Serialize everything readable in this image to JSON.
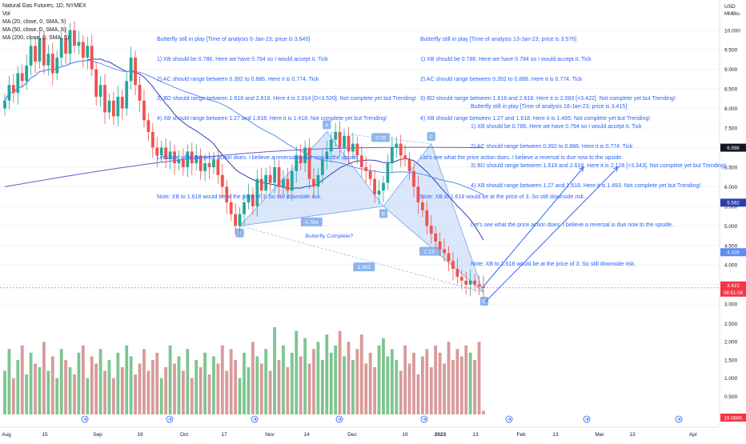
{
  "legend": {
    "title": "Natural Gas Futures, 1D, NYMEX",
    "vol": "Vol",
    "ma20": "MA (20, close, 0, SMA, 5)",
    "ma50": "MA (50, close, 0, SMA, 5)",
    "ma200": "MA (200, close, 0, SMA, 5)"
  },
  "axis": {
    "currency": "USD",
    "unit": "MMBtu",
    "price_ticks": [
      "10.000",
      "9.500",
      "9.000",
      "8.500",
      "8.000",
      "7.500",
      "7.000",
      "6.500",
      "6.000",
      "5.500",
      "5.000",
      "4.500",
      "4.000",
      "3.500",
      "3.000"
    ],
    "volume_ticks": [
      "2.500",
      "2.000",
      "1.500",
      "1.000",
      "0.500"
    ],
    "time_ticks": [
      "Aug",
      "15",
      "Sep",
      "19",
      "Oct",
      "17",
      "Nov",
      "14",
      "Dec",
      "19",
      "2023",
      "13",
      "Feb",
      "13",
      "Mar",
      "13",
      "Apr"
    ],
    "badges": [
      {
        "text": "6.998",
        "color": "#131722"
      },
      {
        "text": "5.592",
        "color": "#2a3fae"
      },
      {
        "text": "4.326",
        "color": "#5b8def"
      },
      {
        "text": "3.415",
        "color": "#f23645"
      },
      {
        "text": "08:51:06",
        "color": "#f23645"
      },
      {
        "text": "19.088K",
        "color": "#f23645"
      }
    ]
  },
  "pattern": {
    "points": [
      "X",
      "A",
      "B",
      "C",
      "D"
    ],
    "ratios": [
      "0.78",
      "0.794",
      "2.128",
      "1.493"
    ],
    "label": "Butterfly Complete?"
  },
  "notes": [
    {
      "lines": [
        "Butterfly still in play [Time of analysis 6-Jan-23; price is 3.645]",
        "1) XB should be 0.786. Here we have 0.794 so I would accept it. Tick",
        "2) AC should range between 0.392 to 0.886. Here it is 0.774. Tick",
        "3) BD should range between 1.618 and 2.618. Here it is 2.014 [D=3.520]. Not complete yet but Trending!",
        "4) XB should range between 1.27 and 1.618. Here it is 1.418. Not complete yet but Trending!",
        "",
        "Let's see what the price action does. I believe a reversal is due now to the upside.",
        "",
        "Note: XB to 1.618 would be at the price of 3. So still downside risk."
      ]
    },
    {
      "lines": [
        "Butterfly still in play [Time of analysis 13-Jan-23; price is 3.576]",
        "1) XB should be 0.786. Here we have 0.794 so I would accept it. Tick",
        "2) AC should range between 0.392 to 0.886. Here it is 0.774. Tick",
        "3) BD should range between 1.618 and 2.618. Here it is 2.083 [=3.422]. Not complete yet but Trending!",
        "4) XB should range between 1.27 and 1.618. Here it is 1.465. Not complete yet but Trending!",
        "",
        "Let's see what the price action does. I believe a reversal is due now to the upside.",
        "",
        "Note: XB to 1.618 would be at the price of 3. So still downside risk."
      ]
    },
    {
      "lines": [
        "Butterfly still in play [Time of analysis 18-Jan-23; price is 3.415]",
        "1) XB should be 0.786. Here we have 0.794 so I would accept it. Tick",
        "2) AC should range between 0.392 to 0.886. Here it is 0.774. Tick",
        "3) BD should range between 1.618 and 2.618. Here it is 2.128 [=3.343]. Not complete yet but Trending!",
        "4) XB should range between 1.27 and 1.618. Here it is 1.493. Not complete yet but Trending!",
        "",
        "Let's see what the price action does. I believe a reversal is due now to the upside.",
        "",
        "Note: XB to 1.618 would be at the price of 3. So still downside risk."
      ]
    }
  ],
  "colors": {
    "up": "#26a69a",
    "down": "#ef5350",
    "vol_up": "#7dc58f",
    "vol_down": "#d89a9a",
    "ma20": "#2a3fae",
    "ma50": "#5b8def",
    "ma200": "#6a5acd",
    "pattern_fill": "#bcd3f5",
    "pattern_line": "#7aa6e8",
    "arrow": "#2962ff"
  },
  "chart_data": {
    "type": "candlestick",
    "title": "Natural Gas Futures, 1D, NYMEX",
    "ylabel": "USD / MMBtu",
    "ylim": [
      2.9,
      10.2
    ],
    "volume_ylim": [
      0,
      2.6
    ],
    "x_ticks": [
      "Aug",
      "15",
      "Sep",
      "19",
      "Oct",
      "17",
      "Nov",
      "14",
      "Dec",
      "19",
      "2023",
      "13",
      "Feb",
      "13",
      "Mar",
      "13",
      "Apr"
    ],
    "last_price": 3.415,
    "last_volume": "19.088K",
    "ma_values_last": {
      "ma20": 5.592,
      "ma50": 4.326,
      "ma200": 6.998
    },
    "close": [
      8.2,
      8.6,
      8.4,
      8.9,
      8.7,
      9.1,
      9.6,
      9.2,
      9.8,
      9.1,
      9.4,
      8.9,
      9.3,
      9.8,
      9.4,
      10.0,
      9.6,
      9.7,
      9.3,
      9.6,
      9.0,
      8.3,
      8.6,
      7.9,
      8.2,
      7.8,
      8.3,
      8.0,
      8.7,
      9.3,
      8.6,
      8.2,
      7.7,
      7.4,
      7.0,
      6.8,
      7.0,
      6.7,
      6.9,
      6.6,
      6.7,
      6.5,
      6.9,
      6.6,
      6.8,
      6.4,
      6.6,
      6.5,
      6.7,
      6.3,
      6.0,
      5.6,
      5.3,
      5.0,
      5.3,
      5.6,
      5.8,
      5.5,
      6.2,
      5.9,
      6.3,
      6.1,
      6.5,
      6.0,
      6.2,
      5.9,
      6.4,
      6.8,
      6.6,
      7.0,
      6.2,
      6.0,
      6.3,
      6.7,
      6.9,
      7.2,
      7.4,
      7.0,
      7.3,
      6.9,
      7.1,
      6.8,
      6.5,
      6.4,
      6.2,
      5.8,
      5.9,
      6.1,
      6.6,
      7.0,
      7.1,
      6.8,
      6.7,
      6.4,
      6.0,
      5.6,
      5.4,
      5.0,
      4.8,
      4.6,
      4.4,
      4.3,
      4.1,
      3.9,
      3.7,
      3.6,
      3.5,
      3.6,
      3.5,
      3.45,
      3.415
    ],
    "volume": [
      1.2,
      1.8,
      1.0,
      1.5,
      1.9,
      1.1,
      1.7,
      1.4,
      1.3,
      2.0,
      1.2,
      1.6,
      1.0,
      1.8,
      1.5,
      1.3,
      1.1,
      1.7,
      1.9,
      1.0,
      1.6,
      1.4,
      1.8,
      1.2,
      1.5,
      1.0,
      1.7,
      1.3,
      1.9,
      1.6,
      1.1,
      1.4,
      1.8,
      1.2,
      1.5,
      1.7,
      1.0,
      1.3,
      1.9,
      1.4,
      1.6,
      1.2,
      1.8,
      1.0,
      1.5,
      1.3,
      1.7,
      1.1,
      1.6,
      1.4,
      1.9,
      1.2,
      1.8,
      1.5,
      1.0,
      1.7,
      1.3,
      2.0,
      1.6,
      1.4,
      1.8,
      1.2,
      2.4,
      1.5,
      1.9,
      1.3,
      1.7,
      2.3,
      1.6,
      2.1,
      1.4,
      1.8,
      2.0,
      1.5,
      2.2,
      1.7,
      1.9,
      2.3,
      1.6,
      2.0,
      1.5,
      1.8,
      2.2,
      1.4,
      1.7,
      1.3,
      1.9,
      2.1,
      1.6,
      1.8,
      1.5,
      1.2,
      1.9,
      1.4,
      1.7,
      1.1,
      1.6,
      1.8,
      1.3,
      1.9,
      1.7,
      1.4,
      2.0,
      1.5,
      1.8,
      1.6,
      1.9,
      1.7,
      1.5,
      2.0,
      0.1
    ]
  }
}
